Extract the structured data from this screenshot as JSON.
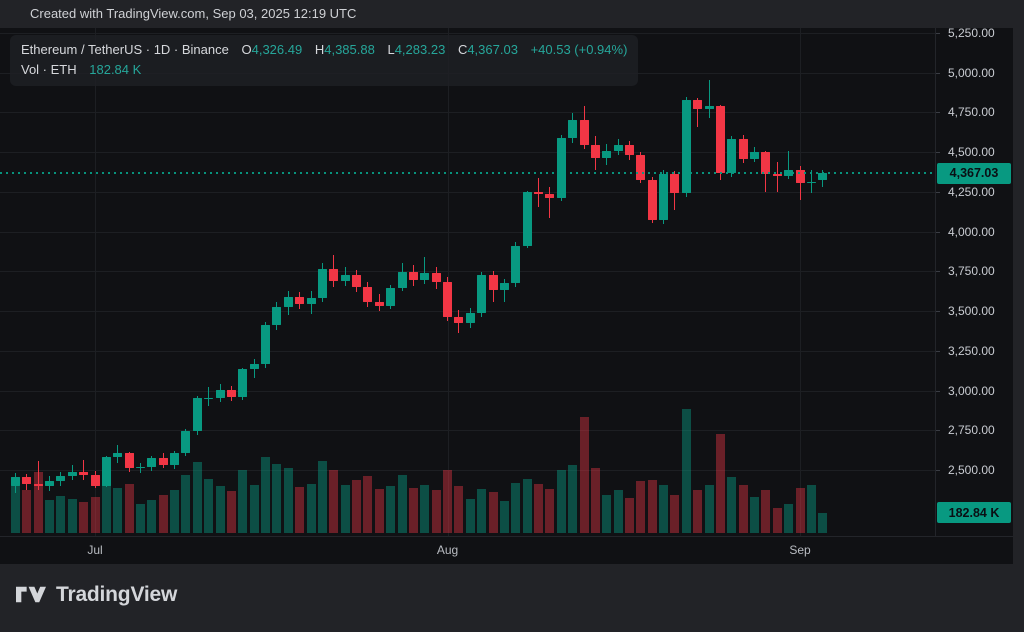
{
  "top_bar": {
    "text": "Created with TradingView.com, Sep 03, 2025 12:19 UTC"
  },
  "legend": {
    "title": "Ethereum / TetherUS · 1D · Binance",
    "open_label": "O",
    "open_value": "4,326.49",
    "high_label": "H",
    "high_value": "4,385.88",
    "low_label": "L",
    "low_value": "4,283.23",
    "close_label": "C",
    "close_value": "4,367.03",
    "change": "+40.53 (+0.94%)",
    "volume_label": "Vol · ETH",
    "volume_value": "182.84 K"
  },
  "price_scale": {
    "ticks": [
      "5,250.00",
      "5,000.00",
      "4,750.00",
      "4,500.00",
      "4,250.00",
      "4,000.00",
      "3,750.00",
      "3,500.00",
      "3,250.00",
      "3,000.00",
      "2,750.00",
      "2,500.00"
    ],
    "price_label": "4,367.03",
    "volume_badge": "182.84 K"
  },
  "time_scale": {
    "ticks": [
      "Jul",
      "Aug",
      "Sep"
    ]
  },
  "footer": {
    "brand": "TradingView"
  },
  "colors": {
    "up": "#089981",
    "down": "#f23645",
    "volume_up": "rgba(8,153,129,0.45)",
    "volume_down": "rgba(242,54,69,0.40)",
    "header_value_teal": "#26a69a",
    "badge_bg": "#089981"
  },
  "chart_data": {
    "type": "candlestick",
    "title": "Ethereum / TetherUS",
    "interval": "1D",
    "exchange": "Binance",
    "last_price": 4367.03,
    "change": 40.53,
    "change_pct": 0.94,
    "last_volume_k": 182.84,
    "price_axis": {
      "min": 2500,
      "max": 5250,
      "tick_step": 250,
      "grid": true
    },
    "volume_axis": {
      "max_k": 1130
    },
    "time_axis": {
      "start_date": "2025-06-24",
      "end_date": "2025-09-03",
      "month_ticks": [
        {
          "label": "Jul",
          "index": 7
        },
        {
          "label": "Aug",
          "index": 38
        },
        {
          "label": "Sep",
          "index": 69
        }
      ]
    },
    "candles_format": [
      "date",
      "open",
      "high",
      "low",
      "close",
      "volume_k"
    ],
    "candles": [
      [
        "2025-06-24",
        2400,
        2480,
        2355,
        2455,
        430
      ],
      [
        "2025-06-25",
        2455,
        2475,
        2375,
        2410,
        390
      ],
      [
        "2025-06-26",
        2410,
        2555,
        2375,
        2400,
        560
      ],
      [
        "2025-06-27",
        2400,
        2460,
        2370,
        2430,
        300
      ],
      [
        "2025-06-28",
        2430,
        2490,
        2400,
        2465,
        340
      ],
      [
        "2025-06-29",
        2465,
        2530,
        2435,
        2490,
        310
      ],
      [
        "2025-06-30",
        2490,
        2560,
        2440,
        2470,
        280
      ],
      [
        "2025-07-01",
        2470,
        2495,
        2385,
        2400,
        330
      ],
      [
        "2025-07-02",
        2400,
        2590,
        2390,
        2580,
        540
      ],
      [
        "2025-07-03",
        2580,
        2655,
        2545,
        2605,
        410
      ],
      [
        "2025-07-04",
        2605,
        2615,
        2485,
        2510,
        450
      ],
      [
        "2025-07-05",
        2510,
        2545,
        2480,
        2520,
        260
      ],
      [
        "2025-07-06",
        2520,
        2585,
        2495,
        2575,
        300
      ],
      [
        "2025-07-07",
        2575,
        2605,
        2510,
        2530,
        350
      ],
      [
        "2025-07-08",
        2530,
        2620,
        2505,
        2610,
        390
      ],
      [
        "2025-07-09",
        2610,
        2760,
        2585,
        2745,
        530
      ],
      [
        "2025-07-10",
        2745,
        2965,
        2720,
        2950,
        650
      ],
      [
        "2025-07-11",
        2950,
        3025,
        2900,
        2955,
        490
      ],
      [
        "2025-07-12",
        2955,
        3040,
        2930,
        3005,
        430
      ],
      [
        "2025-07-13",
        3005,
        3030,
        2935,
        2960,
        380
      ],
      [
        "2025-07-14",
        2960,
        3145,
        2940,
        3135,
        570
      ],
      [
        "2025-07-15",
        3135,
        3200,
        3080,
        3165,
        440
      ],
      [
        "2025-07-16",
        3165,
        3430,
        3140,
        3415,
        690
      ],
      [
        "2025-07-17",
        3415,
        3560,
        3380,
        3525,
        630
      ],
      [
        "2025-07-18",
        3525,
        3625,
        3475,
        3590,
        590
      ],
      [
        "2025-07-19",
        3590,
        3620,
        3515,
        3545,
        420
      ],
      [
        "2025-07-20",
        3545,
        3625,
        3480,
        3580,
        450
      ],
      [
        "2025-07-21",
        3580,
        3800,
        3555,
        3765,
        660
      ],
      [
        "2025-07-22",
        3765,
        3855,
        3650,
        3690,
        570
      ],
      [
        "2025-07-23",
        3690,
        3775,
        3655,
        3730,
        440
      ],
      [
        "2025-07-24",
        3730,
        3760,
        3620,
        3650,
        480
      ],
      [
        "2025-07-25",
        3650,
        3680,
        3525,
        3560,
        520
      ],
      [
        "2025-07-26",
        3560,
        3605,
        3500,
        3535,
        400
      ],
      [
        "2025-07-27",
        3535,
        3665,
        3515,
        3645,
        430
      ],
      [
        "2025-07-28",
        3645,
        3800,
        3625,
        3745,
        530
      ],
      [
        "2025-07-29",
        3745,
        3790,
        3660,
        3695,
        410
      ],
      [
        "2025-07-30",
        3695,
        3840,
        3670,
        3740,
        440
      ],
      [
        "2025-07-31",
        3740,
        3780,
        3640,
        3685,
        390
      ],
      [
        "2025-08-01",
        3685,
        3715,
        3435,
        3465,
        570
      ],
      [
        "2025-08-02",
        3465,
        3510,
        3360,
        3425,
        430
      ],
      [
        "2025-08-03",
        3425,
        3520,
        3395,
        3485,
        310
      ],
      [
        "2025-08-04",
        3485,
        3745,
        3460,
        3725,
        400
      ],
      [
        "2025-08-05",
        3725,
        3755,
        3560,
        3635,
        370
      ],
      [
        "2025-08-06",
        3635,
        3700,
        3555,
        3675,
        290
      ],
      [
        "2025-08-07",
        3675,
        3935,
        3650,
        3910,
        460
      ],
      [
        "2025-08-08",
        3910,
        4255,
        3900,
        4250,
        490
      ],
      [
        "2025-08-09",
        4250,
        4335,
        4155,
        4235,
        450
      ],
      [
        "2025-08-10",
        4235,
        4280,
        4085,
        4210,
        400
      ],
      [
        "2025-08-11",
        4210,
        4605,
        4190,
        4590,
        570
      ],
      [
        "2025-08-12",
        4590,
        4745,
        4560,
        4705,
        620
      ],
      [
        "2025-08-13",
        4705,
        4790,
        4520,
        4545,
        1060
      ],
      [
        "2025-08-14",
        4545,
        4600,
        4390,
        4465,
        590
      ],
      [
        "2025-08-15",
        4465,
        4550,
        4420,
        4510,
        350
      ],
      [
        "2025-08-16",
        4510,
        4580,
        4480,
        4545,
        390
      ],
      [
        "2025-08-17",
        4545,
        4570,
        4450,
        4485,
        320
      ],
      [
        "2025-08-18",
        4485,
        4500,
        4305,
        4325,
        470
      ],
      [
        "2025-08-19",
        4325,
        4345,
        4055,
        4075,
        480
      ],
      [
        "2025-08-20",
        4075,
        4385,
        4050,
        4365,
        440
      ],
      [
        "2025-08-21",
        4365,
        4380,
        4135,
        4240,
        350
      ],
      [
        "2025-08-22",
        4240,
        4845,
        4220,
        4830,
        1130
      ],
      [
        "2025-08-23",
        4830,
        4840,
        4660,
        4770,
        390
      ],
      [
        "2025-08-24",
        4770,
        4956,
        4715,
        4790,
        440
      ],
      [
        "2025-08-25",
        4790,
        4800,
        4325,
        4370,
        900
      ],
      [
        "2025-08-26",
        4370,
        4600,
        4345,
        4580,
        510
      ],
      [
        "2025-08-27",
        4580,
        4605,
        4430,
        4460,
        440
      ],
      [
        "2025-08-28",
        4460,
        4530,
        4440,
        4500,
        330
      ],
      [
        "2025-08-29",
        4500,
        4510,
        4250,
        4360,
        390
      ],
      [
        "2025-08-30",
        4360,
        4440,
        4250,
        4350,
        230
      ],
      [
        "2025-08-31",
        4350,
        4505,
        4330,
        4385,
        260
      ],
      [
        "2025-09-01",
        4385,
        4415,
        4200,
        4305,
        410
      ],
      [
        "2025-09-02",
        4305,
        4390,
        4245,
        4315,
        440
      ],
      [
        "2025-09-03",
        4326.49,
        4385.88,
        4283.23,
        4367.03,
        182.84
      ]
    ]
  }
}
